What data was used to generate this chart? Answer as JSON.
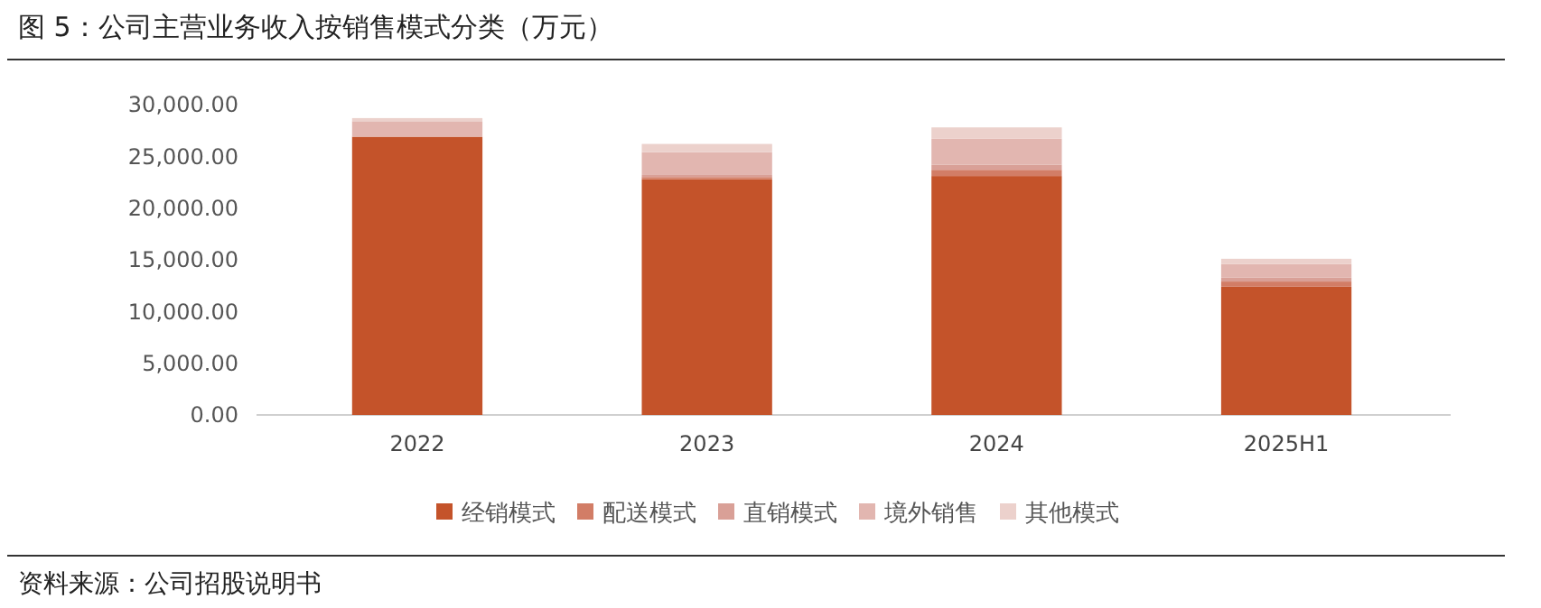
{
  "chart_data": {
    "type": "bar",
    "title": "图 5：公司主营业务收入按销售模式分类（万元）",
    "categories": [
      "2022",
      "2023",
      "2024",
      "2025H1"
    ],
    "stacked": true,
    "series": [
      {
        "name": "经销模式",
        "color": "#c4532a",
        "values": [
          26900,
          22800,
          23100,
          12400
        ]
      },
      {
        "name": "配送模式",
        "color": "#d27d66",
        "values": [
          null,
          200,
          600,
          500
        ]
      },
      {
        "name": "直销模式",
        "color": "#d9a097",
        "values": [
          null,
          200,
          500,
          400
        ]
      },
      {
        "name": "境外销售",
        "color": "#e2b6b0",
        "values": [
          1500,
          2200,
          2500,
          1300
        ]
      },
      {
        "name": "其他模式",
        "color": "#ecd1cc",
        "values": [
          300,
          800,
          1100,
          500
        ]
      }
    ],
    "ylim": [
      0,
      30000
    ],
    "yticks": [
      {
        "value": 0,
        "label": "0.00"
      },
      {
        "value": 5000,
        "label": "5,000.00"
      },
      {
        "value": 10000,
        "label": "10,000.00"
      },
      {
        "value": 15000,
        "label": "15,000.00"
      },
      {
        "value": 20000,
        "label": "20,000.00"
      },
      {
        "value": 25000,
        "label": "25,000.00"
      },
      {
        "value": 30000,
        "label": "30,000.00"
      }
    ],
    "grid": false,
    "legend": "bottom",
    "annotations": [
      "资料来源：公司招股说明书"
    ]
  }
}
